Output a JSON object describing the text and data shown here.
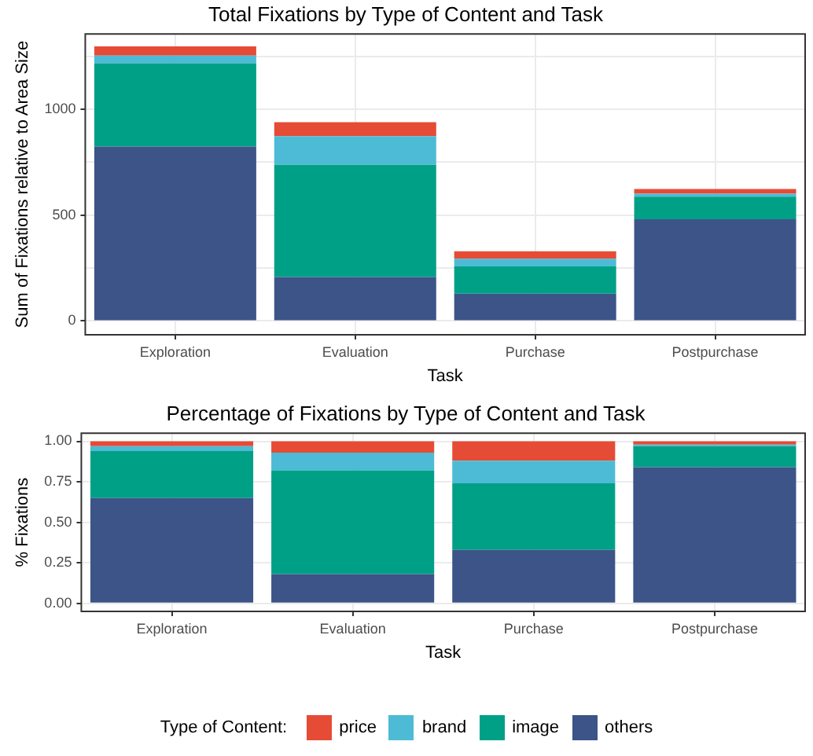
{
  "chart_data": [
    {
      "type": "bar",
      "title": "Total Fixations by Type of Content and Task",
      "xlabel": "Task",
      "ylabel": "Sum of Fixations relative to Area Size",
      "categories": [
        "Exploration",
        "Evaluation",
        "Purchase",
        "Postpurchase"
      ],
      "stacked": true,
      "series": [
        {
          "name": "others",
          "color": "#3c5488",
          "values": [
            823,
            208,
            129,
            480
          ]
        },
        {
          "name": "image",
          "color": "#00a087",
          "values": [
            394,
            529,
            129,
            107
          ]
        },
        {
          "name": "brand",
          "color": "#4dbbd5",
          "values": [
            36,
            136,
            36,
            14
          ]
        },
        {
          "name": "price",
          "color": "#e64b35",
          "values": [
            43,
            65,
            35,
            22
          ]
        }
      ],
      "ylim": [
        -65,
        1355
      ],
      "yticks": [
        0,
        {
          "value": 250,
          "label": null
        },
        500,
        {
          "value": 750,
          "label": null
        },
        1000,
        {
          "value": 1250,
          "label": null
        }
      ],
      "grid": true,
      "legend": "bottom",
      "legend_title": "Type of Content:"
    },
    {
      "type": "bar",
      "title": "Percentage of Fixations by Type of Content and Task",
      "xlabel": "Task",
      "ylabel": "% Fixations",
      "categories": [
        "Exploration",
        "Evaluation",
        "Purchase",
        "Postpurchase"
      ],
      "stacked": true,
      "series": [
        {
          "color": "#3c5488",
          "values": [
            0.65,
            0.18,
            0.33,
            0.84
          ]
        },
        {
          "color": "#00a087",
          "values": [
            0.29,
            0.64,
            0.41,
            0.13
          ]
        },
        {
          "color": "#4dbbd5",
          "values": [
            0.03,
            0.11,
            0.14,
            0.01
          ]
        },
        {
          "color": "#e64b35",
          "values": [
            0.03,
            0.07,
            0.12,
            0.02
          ]
        }
      ],
      "ylim": [
        -0.05,
        1.05
      ],
      "yticks": [
        {
          "value": 0,
          "label": "0.00"
        },
        {
          "value": 0.25,
          "label": "0.25"
        },
        {
          "value": 0.5,
          "label": "0.50"
        },
        {
          "value": 0.75,
          "label": "0.75"
        },
        {
          "value": 1,
          "label": "1.00"
        }
      ],
      "grid": true,
      "legend": false
    }
  ]
}
